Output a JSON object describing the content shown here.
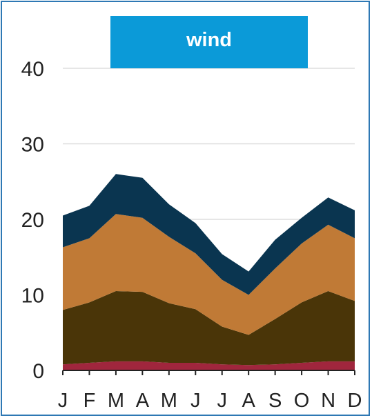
{
  "chart_data": {
    "type": "area",
    "stacked": true,
    "title": "wind",
    "categories": [
      "J",
      "F",
      "M",
      "A",
      "M",
      "J",
      "J",
      "A",
      "S",
      "O",
      "N",
      "D"
    ],
    "ylim": [
      0,
      45
    ],
    "yticks": [
      "0",
      "10",
      "20",
      "30",
      "40"
    ],
    "grid": true,
    "series": [
      {
        "color": "#a0263d",
        "values": [
          0.8,
          1.0,
          1.2,
          1.2,
          1.0,
          1.0,
          0.8,
          0.7,
          0.8,
          1.0,
          1.2,
          1.2
        ]
      },
      {
        "color": "#4a3508",
        "values": [
          7.2,
          8.0,
          9.3,
          9.2,
          7.9,
          7.1,
          5.0,
          4.0,
          6.0,
          8.0,
          9.3,
          8.0
        ]
      },
      {
        "color": "#c07a36",
        "values": [
          8.3,
          8.5,
          10.2,
          9.8,
          8.8,
          7.4,
          6.2,
          5.3,
          6.7,
          7.8,
          8.8,
          8.3
        ]
      },
      {
        "color": "#0a3550",
        "values": [
          4.2,
          4.3,
          5.3,
          5.3,
          4.3,
          4.0,
          3.4,
          3.1,
          3.8,
          3.4,
          3.6,
          3.7
        ]
      }
    ],
    "colors": {
      "title_bar": "#0b9ad8",
      "frame": "#2e78b4",
      "gridline": "#dddddd",
      "axis": "#222222"
    }
  }
}
